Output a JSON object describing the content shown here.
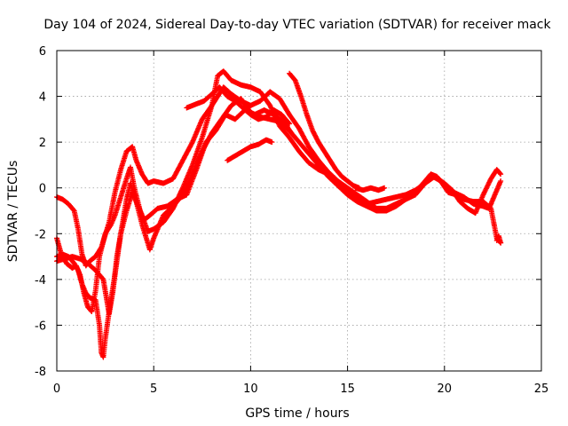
{
  "chart_data": {
    "type": "scatter",
    "title": "Day 104 of 2024, Sidereal Day-to-day VTEC variation (SDTVAR) for receiver mack",
    "xlabel": "GPS time / hours",
    "ylabel": "SDTVAR / TECUs",
    "xlim": [
      0,
      25
    ],
    "ylim": [
      -8,
      6
    ],
    "xticks": [
      0,
      5,
      10,
      15,
      20,
      25
    ],
    "yticks": [
      -8,
      -6,
      -4,
      -2,
      0,
      2,
      4,
      6
    ],
    "grid": true,
    "marker": "+",
    "series_color": "#ff0000",
    "series": [
      {
        "name": "track-1",
        "points": [
          [
            0.0,
            -0.4
          ],
          [
            0.3,
            -0.5
          ],
          [
            0.6,
            -0.7
          ],
          [
            0.9,
            -1.0
          ],
          [
            1.1,
            -1.8
          ],
          [
            1.3,
            -2.9
          ],
          [
            1.5,
            -3.4
          ],
          [
            1.7,
            -3.2
          ],
          [
            2.0,
            -3.0
          ],
          [
            2.3,
            -2.6
          ],
          [
            2.7,
            -1.5
          ],
          [
            3.0,
            -0.2
          ],
          [
            3.3,
            0.8
          ],
          [
            3.6,
            1.6
          ],
          [
            3.9,
            1.8
          ],
          [
            4.1,
            1.2
          ],
          [
            4.4,
            0.6
          ],
          [
            4.7,
            0.2
          ],
          [
            5.0,
            0.3
          ],
          [
            5.5,
            0.2
          ],
          [
            6.0,
            0.4
          ],
          [
            6.5,
            1.2
          ],
          [
            7.0,
            2.0
          ],
          [
            7.5,
            3.0
          ],
          [
            8.0,
            3.6
          ],
          [
            8.3,
            4.0
          ],
          [
            8.6,
            4.4
          ],
          [
            9.0,
            4.1
          ],
          [
            9.5,
            3.8
          ],
          [
            10.0,
            3.6
          ],
          [
            10.5,
            3.8
          ],
          [
            11.0,
            4.2
          ],
          [
            11.5,
            3.9
          ],
          [
            12.0,
            3.2
          ],
          [
            12.5,
            2.6
          ],
          [
            13.0,
            1.8
          ],
          [
            13.5,
            1.2
          ],
          [
            14.0,
            0.7
          ],
          [
            14.5,
            0.3
          ],
          [
            15.0,
            0.0
          ],
          [
            15.5,
            -0.3
          ],
          [
            16.0,
            -0.6
          ],
          [
            16.5,
            -0.9
          ],
          [
            17.0,
            -0.9
          ],
          [
            17.5,
            -0.7
          ],
          [
            18.0,
            -0.5
          ],
          [
            18.5,
            -0.2
          ],
          [
            19.0,
            0.3
          ],
          [
            19.3,
            0.6
          ],
          [
            19.6,
            0.5
          ],
          [
            20.0,
            0.1
          ],
          [
            20.5,
            -0.2
          ],
          [
            21.0,
            -0.4
          ],
          [
            21.5,
            -0.7
          ],
          [
            22.0,
            -0.8
          ],
          [
            22.3,
            -0.9
          ],
          [
            22.6,
            -0.3
          ],
          [
            22.9,
            0.3
          ]
        ]
      },
      {
        "name": "track-2",
        "points": [
          [
            0.0,
            -3.0
          ],
          [
            0.3,
            -2.9
          ],
          [
            0.6,
            -3.0
          ],
          [
            0.9,
            -3.3
          ],
          [
            1.1,
            -3.6
          ],
          [
            1.3,
            -4.2
          ],
          [
            1.5,
            -4.6
          ],
          [
            1.7,
            -4.8
          ],
          [
            2.0,
            -4.9
          ],
          [
            2.2,
            -6.0
          ],
          [
            2.3,
            -7.2
          ],
          [
            2.4,
            -7.4
          ],
          [
            2.5,
            -6.6
          ],
          [
            2.7,
            -5.4
          ],
          [
            3.0,
            -3.8
          ],
          [
            3.3,
            -2.0
          ],
          [
            3.6,
            -0.5
          ],
          [
            3.8,
            0.2
          ],
          [
            4.1,
            -0.6
          ],
          [
            4.4,
            -1.6
          ],
          [
            4.8,
            -2.7
          ],
          [
            5.0,
            -2.2
          ],
          [
            5.5,
            -1.2
          ],
          [
            6.0,
            -0.8
          ],
          [
            6.5,
            -0.3
          ],
          [
            7.0,
            0.6
          ],
          [
            7.5,
            1.6
          ],
          [
            8.0,
            2.4
          ],
          [
            8.5,
            3.0
          ],
          [
            9.0,
            3.6
          ],
          [
            9.5,
            3.9
          ],
          [
            10.0,
            3.3
          ],
          [
            10.5,
            3.1
          ],
          [
            11.0,
            3.0
          ],
          [
            11.5,
            2.9
          ],
          [
            12.0,
            2.5
          ],
          [
            12.5,
            2.0
          ],
          [
            13.0,
            1.5
          ],
          [
            13.5,
            1.0
          ],
          [
            14.0,
            0.5
          ],
          [
            14.5,
            0.1
          ],
          [
            15.0,
            -0.3
          ],
          [
            15.5,
            -0.6
          ],
          [
            16.0,
            -0.8
          ],
          [
            16.5,
            -1.0
          ],
          [
            17.0,
            -1.0
          ],
          [
            17.5,
            -0.8
          ],
          [
            18.0,
            -0.5
          ],
          [
            18.5,
            -0.3
          ],
          [
            19.0,
            0.2
          ],
          [
            19.4,
            0.5
          ],
          [
            19.8,
            0.3
          ],
          [
            20.2,
            -0.2
          ],
          [
            20.6,
            -0.3
          ],
          [
            21.0,
            -0.5
          ],
          [
            21.5,
            -0.6
          ],
          [
            22.0,
            -0.6
          ],
          [
            22.4,
            -0.9
          ],
          [
            22.7,
            -2.2
          ],
          [
            22.9,
            -2.4
          ]
        ]
      },
      {
        "name": "track-3",
        "points": [
          [
            0.0,
            -2.2
          ],
          [
            0.2,
            -2.8
          ],
          [
            0.5,
            -3.3
          ],
          [
            0.8,
            -3.5
          ],
          [
            1.0,
            -3.4
          ],
          [
            1.2,
            -3.8
          ],
          [
            1.4,
            -4.6
          ],
          [
            1.6,
            -5.2
          ],
          [
            1.8,
            -5.4
          ],
          [
            2.0,
            -4.5
          ],
          [
            2.2,
            -3.0
          ],
          [
            2.5,
            -2.0
          ],
          [
            2.8,
            -1.6
          ],
          [
            3.0,
            -1.2
          ],
          [
            3.3,
            -0.4
          ],
          [
            3.6,
            0.4
          ],
          [
            3.8,
            0.9
          ],
          [
            4.0,
            0.0
          ],
          [
            4.3,
            -1.0
          ],
          [
            4.7,
            -1.9
          ],
          [
            5.0,
            -1.8
          ],
          [
            5.5,
            -1.5
          ],
          [
            6.0,
            -0.9
          ],
          [
            6.5,
            0.0
          ],
          [
            7.0,
            1.0
          ],
          [
            7.5,
            2.2
          ],
          [
            8.0,
            3.6
          ],
          [
            8.3,
            4.9
          ],
          [
            8.6,
            5.1
          ],
          [
            9.0,
            4.7
          ],
          [
            9.5,
            4.5
          ],
          [
            10.0,
            4.4
          ],
          [
            10.5,
            4.2
          ],
          [
            11.0,
            3.6
          ],
          [
            11.5,
            2.7
          ],
          [
            12.0,
            2.2
          ],
          [
            12.5,
            1.6
          ],
          [
            13.0,
            1.1
          ],
          [
            13.5,
            0.8
          ],
          [
            14.0,
            0.6
          ],
          [
            14.5,
            0.1
          ],
          [
            15.0,
            -0.2
          ],
          [
            15.5,
            -0.5
          ],
          [
            16.0,
            -0.7
          ],
          [
            16.5,
            -0.6
          ],
          [
            17.0,
            -0.5
          ],
          [
            17.5,
            -0.4
          ],
          [
            18.0,
            -0.3
          ],
          [
            18.5,
            -0.1
          ],
          [
            19.0,
            0.2
          ],
          [
            19.5,
            0.5
          ],
          [
            20.0,
            0.2
          ],
          [
            20.4,
            -0.1
          ],
          [
            20.8,
            -0.6
          ],
          [
            21.2,
            -0.9
          ],
          [
            21.6,
            -1.1
          ],
          [
            22.0,
            -0.3
          ],
          [
            22.4,
            0.4
          ],
          [
            22.7,
            0.8
          ],
          [
            22.9,
            0.6
          ]
        ]
      },
      {
        "name": "track-4",
        "points": [
          [
            0.0,
            -3.2
          ],
          [
            0.4,
            -3.1
          ],
          [
            0.8,
            -3.0
          ],
          [
            1.2,
            -3.1
          ],
          [
            1.6,
            -3.3
          ],
          [
            2.0,
            -3.6
          ],
          [
            2.4,
            -4.0
          ],
          [
            2.6,
            -5.0
          ],
          [
            2.7,
            -5.5
          ],
          [
            2.9,
            -4.5
          ],
          [
            3.1,
            -3.0
          ],
          [
            3.3,
            -2.0
          ],
          [
            3.6,
            -1.0
          ],
          [
            3.9,
            -0.2
          ],
          [
            4.2,
            -0.8
          ],
          [
            4.5,
            -1.4
          ],
          [
            4.8,
            -1.2
          ],
          [
            5.2,
            -0.9
          ],
          [
            5.7,
            -0.8
          ],
          [
            6.2,
            -0.5
          ],
          [
            6.7,
            -0.3
          ],
          [
            7.2,
            0.8
          ],
          [
            7.7,
            2.0
          ],
          [
            8.2,
            2.5
          ],
          [
            8.7,
            3.2
          ],
          [
            9.2,
            3.0
          ],
          [
            9.7,
            3.4
          ],
          [
            10.2,
            3.2
          ],
          [
            10.7,
            3.4
          ],
          [
            11.2,
            3.2
          ],
          [
            11.7,
            2.9
          ],
          [
            12.1,
            2.4
          ]
        ]
      },
      {
        "name": "track-5",
        "points": [
          [
            6.7,
            3.5
          ],
          [
            7.0,
            3.6
          ],
          [
            7.3,
            3.7
          ],
          [
            7.6,
            3.8
          ],
          [
            8.0,
            4.1
          ],
          [
            8.4,
            4.4
          ],
          [
            8.8,
            4.0
          ],
          [
            9.2,
            3.8
          ],
          [
            9.6,
            3.5
          ],
          [
            10.0,
            3.2
          ],
          [
            10.4,
            3.0
          ],
          [
            10.8,
            3.1
          ],
          [
            11.2,
            3.4
          ],
          [
            11.6,
            3.2
          ],
          [
            12.0,
            2.8
          ]
        ]
      },
      {
        "name": "track-6",
        "points": [
          [
            8.8,
            1.2
          ],
          [
            9.2,
            1.4
          ],
          [
            9.6,
            1.6
          ],
          [
            10.0,
            1.8
          ],
          [
            10.4,
            1.9
          ],
          [
            10.8,
            2.1
          ],
          [
            11.1,
            2.0
          ]
        ]
      },
      {
        "name": "track-7",
        "points": [
          [
            12.0,
            5.0
          ],
          [
            12.3,
            4.7
          ],
          [
            12.6,
            4.0
          ],
          [
            12.9,
            3.2
          ],
          [
            13.2,
            2.5
          ],
          [
            13.5,
            2.0
          ],
          [
            13.8,
            1.6
          ],
          [
            14.1,
            1.2
          ],
          [
            14.4,
            0.8
          ],
          [
            14.7,
            0.5
          ],
          [
            15.0,
            0.3
          ],
          [
            15.3,
            0.1
          ],
          [
            15.6,
            0.0
          ]
        ]
      },
      {
        "name": "track-8",
        "points": [
          [
            15.4,
            0.0
          ],
          [
            15.8,
            -0.1
          ],
          [
            16.2,
            0.0
          ],
          [
            16.6,
            -0.1
          ],
          [
            16.9,
            0.0
          ]
        ]
      },
      {
        "name": "track-9",
        "points": [
          [
            22.7,
            -2.3
          ],
          [
            22.8,
            -2.1
          ],
          [
            22.9,
            -2.4
          ]
        ]
      }
    ]
  }
}
